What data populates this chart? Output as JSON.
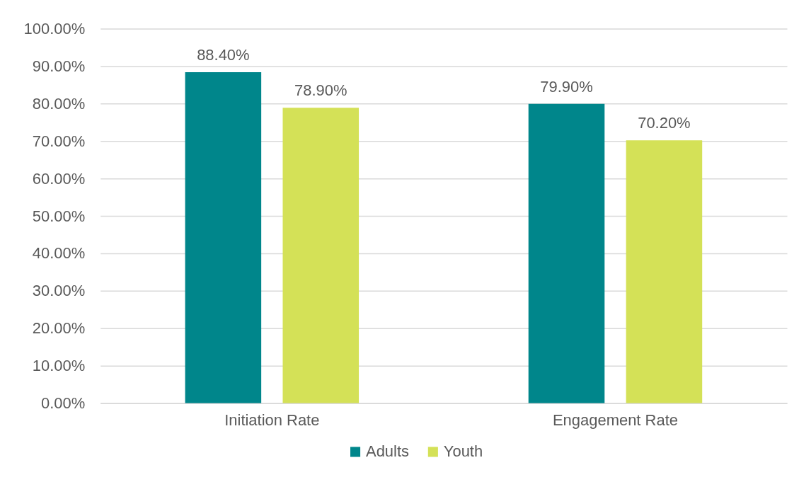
{
  "chart_data": {
    "type": "bar",
    "categories": [
      "Initiation Rate",
      "Engagement Rate"
    ],
    "series": [
      {
        "name": "Adults",
        "color": "#00868b",
        "values": [
          88.4,
          79.9
        ],
        "value_labels": [
          "88.40%",
          "79.90%"
        ]
      },
      {
        "name": "Youth",
        "color": "#d4e157",
        "values": [
          78.9,
          70.2
        ],
        "value_labels": [
          "78.90%",
          "70.20%"
        ]
      }
    ],
    "ylim": [
      0,
      100
    ],
    "yticks": [
      {
        "value": 0,
        "label": "0.00%"
      },
      {
        "value": 10,
        "label": "10.00%"
      },
      {
        "value": 20,
        "label": "20.00%"
      },
      {
        "value": 30,
        "label": "30.00%"
      },
      {
        "value": 40,
        "label": "40.00%"
      },
      {
        "value": 50,
        "label": "50.00%"
      },
      {
        "value": 60,
        "label": "60.00%"
      },
      {
        "value": 70,
        "label": "70.00%"
      },
      {
        "value": 80,
        "label": "80.00%"
      },
      {
        "value": 90,
        "label": "90.00%"
      },
      {
        "value": 100,
        "label": "100.00%"
      }
    ],
    "grid": "y",
    "legend": "bottom"
  }
}
